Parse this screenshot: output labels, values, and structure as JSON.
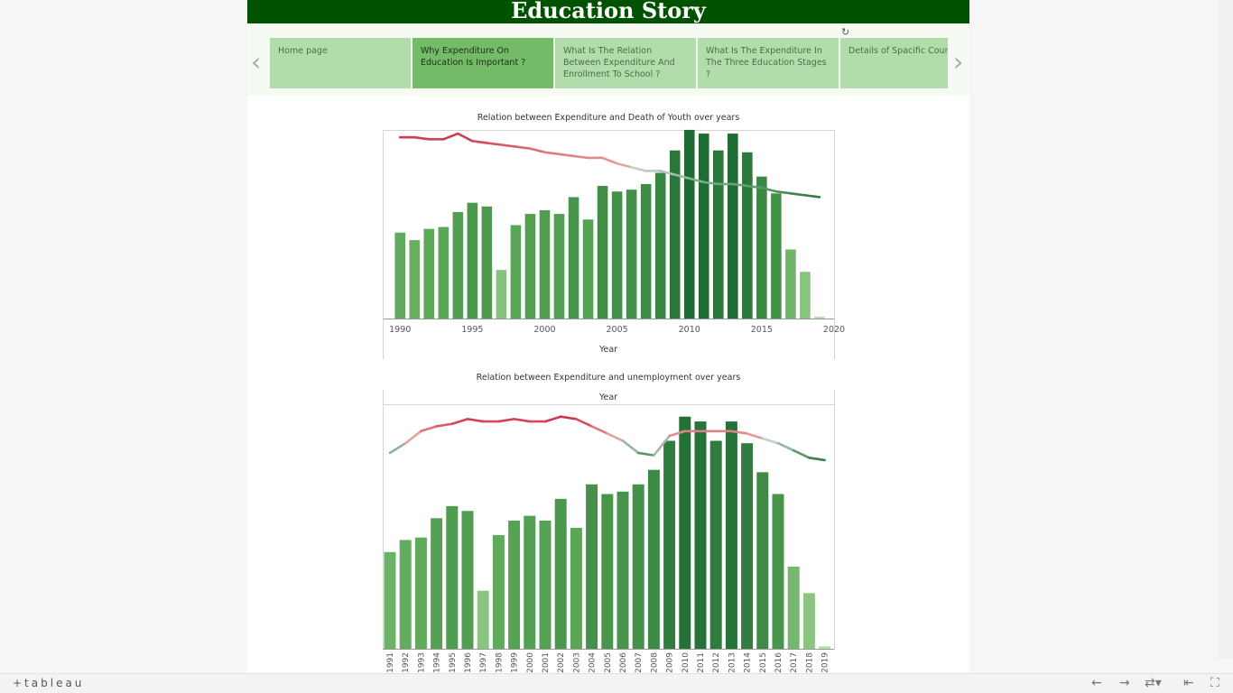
{
  "story": {
    "title": "Education Story",
    "tabs": [
      {
        "label": "Home page",
        "active": false
      },
      {
        "label": "Why Expenditure On Education Is Important ?",
        "active": true
      },
      {
        "label": "What Is The Relation Between Expenditure And Enrollment To School ?",
        "active": false
      },
      {
        "label": "What Is The Expenditure In The Three Education Stages ?",
        "active": false
      },
      {
        "label": "Details of Spacific Countri",
        "active": false
      }
    ]
  },
  "footer": {
    "logo": "+tableau"
  },
  "icons": [
    "refresh-icon",
    "prev-arrow-icon",
    "next-arrow-icon",
    "tableau-logo-icon",
    "undo-icon",
    "redo-icon",
    "revert-icon",
    "reset-icon",
    "fullscreen-icon"
  ],
  "colors": {
    "banner": "#005200",
    "tab": "#b3dcac",
    "tab_active": "#74bb67"
  },
  "chart_data": [
    {
      "type": "bar",
      "title": "Relation between Expenditure and Death of Youth over years",
      "xlabel": "Year",
      "xticks": [
        "1990",
        "1995",
        "2000",
        "2005",
        "2010",
        "2015",
        "2020"
      ],
      "xlim": [
        1988.8,
        2020
      ],
      "ylim": [
        0,
        100
      ],
      "series": [
        {
          "type": "bar",
          "x": [
            1990,
            1991,
            1992,
            1993,
            1994,
            1995,
            1996,
            1997,
            1998,
            1999,
            2000,
            2001,
            2002,
            2003,
            2004,
            2005,
            2006,
            2007,
            2008,
            2009,
            2010,
            2011,
            2012,
            2013,
            2014,
            2015,
            2016,
            2017,
            2018,
            2019
          ],
          "values": [
            46,
            42,
            48,
            49,
            57,
            62,
            60,
            26,
            50,
            56,
            58,
            56,
            65,
            53,
            71,
            68,
            69,
            72,
            78,
            90,
            101,
            99,
            90,
            99,
            89,
            76,
            67,
            37,
            25,
            1
          ]
        },
        {
          "type": "line",
          "x": [
            1990,
            1991,
            1992,
            1993,
            1994,
            1995,
            1996,
            1997,
            1998,
            1999,
            2000,
            2001,
            2002,
            2003,
            2004,
            2005,
            2006,
            2007,
            2008,
            2009,
            2010,
            2011,
            2012,
            2013,
            2014,
            2015,
            2016,
            2017,
            2018,
            2019
          ],
          "values": [
            97,
            97,
            96,
            96,
            99,
            95,
            94,
            93,
            92,
            91,
            89,
            88,
            87,
            86,
            86,
            83,
            81,
            79,
            79,
            77,
            75,
            73,
            72,
            72,
            71,
            70,
            68,
            67,
            66,
            65
          ]
        }
      ]
    },
    {
      "type": "bar",
      "title": "Relation between Expenditure and unemployment over years",
      "xlabel": "Year",
      "categories": [
        "1991",
        "1992",
        "1993",
        "1994",
        "1995",
        "1996",
        "1997",
        "1998",
        "1999",
        "2000",
        "2001",
        "2002",
        "2003",
        "2004",
        "2005",
        "2006",
        "2007",
        "2008",
        "2009",
        "2010",
        "2011",
        "2012",
        "2013",
        "2014",
        "2015",
        "2016",
        "2017",
        "2018",
        "2019"
      ],
      "ylim": [
        0,
        100
      ],
      "series": [
        {
          "type": "bar",
          "values": [
            40,
            45,
            46,
            54,
            59,
            57,
            24,
            47,
            53,
            55,
            53,
            62,
            50,
            68,
            64,
            65,
            68,
            74,
            86,
            96,
            94,
            86,
            94,
            85,
            73,
            64,
            34,
            23,
            1
          ]
        },
        {
          "type": "line",
          "values": [
            81,
            85,
            90,
            92,
            93,
            95,
            94,
            94,
            95,
            94,
            94,
            96,
            95,
            92,
            89,
            86,
            81,
            80,
            88,
            90,
            90,
            90,
            90,
            89,
            87,
            85,
            82,
            79,
            78
          ]
        }
      ]
    }
  ]
}
